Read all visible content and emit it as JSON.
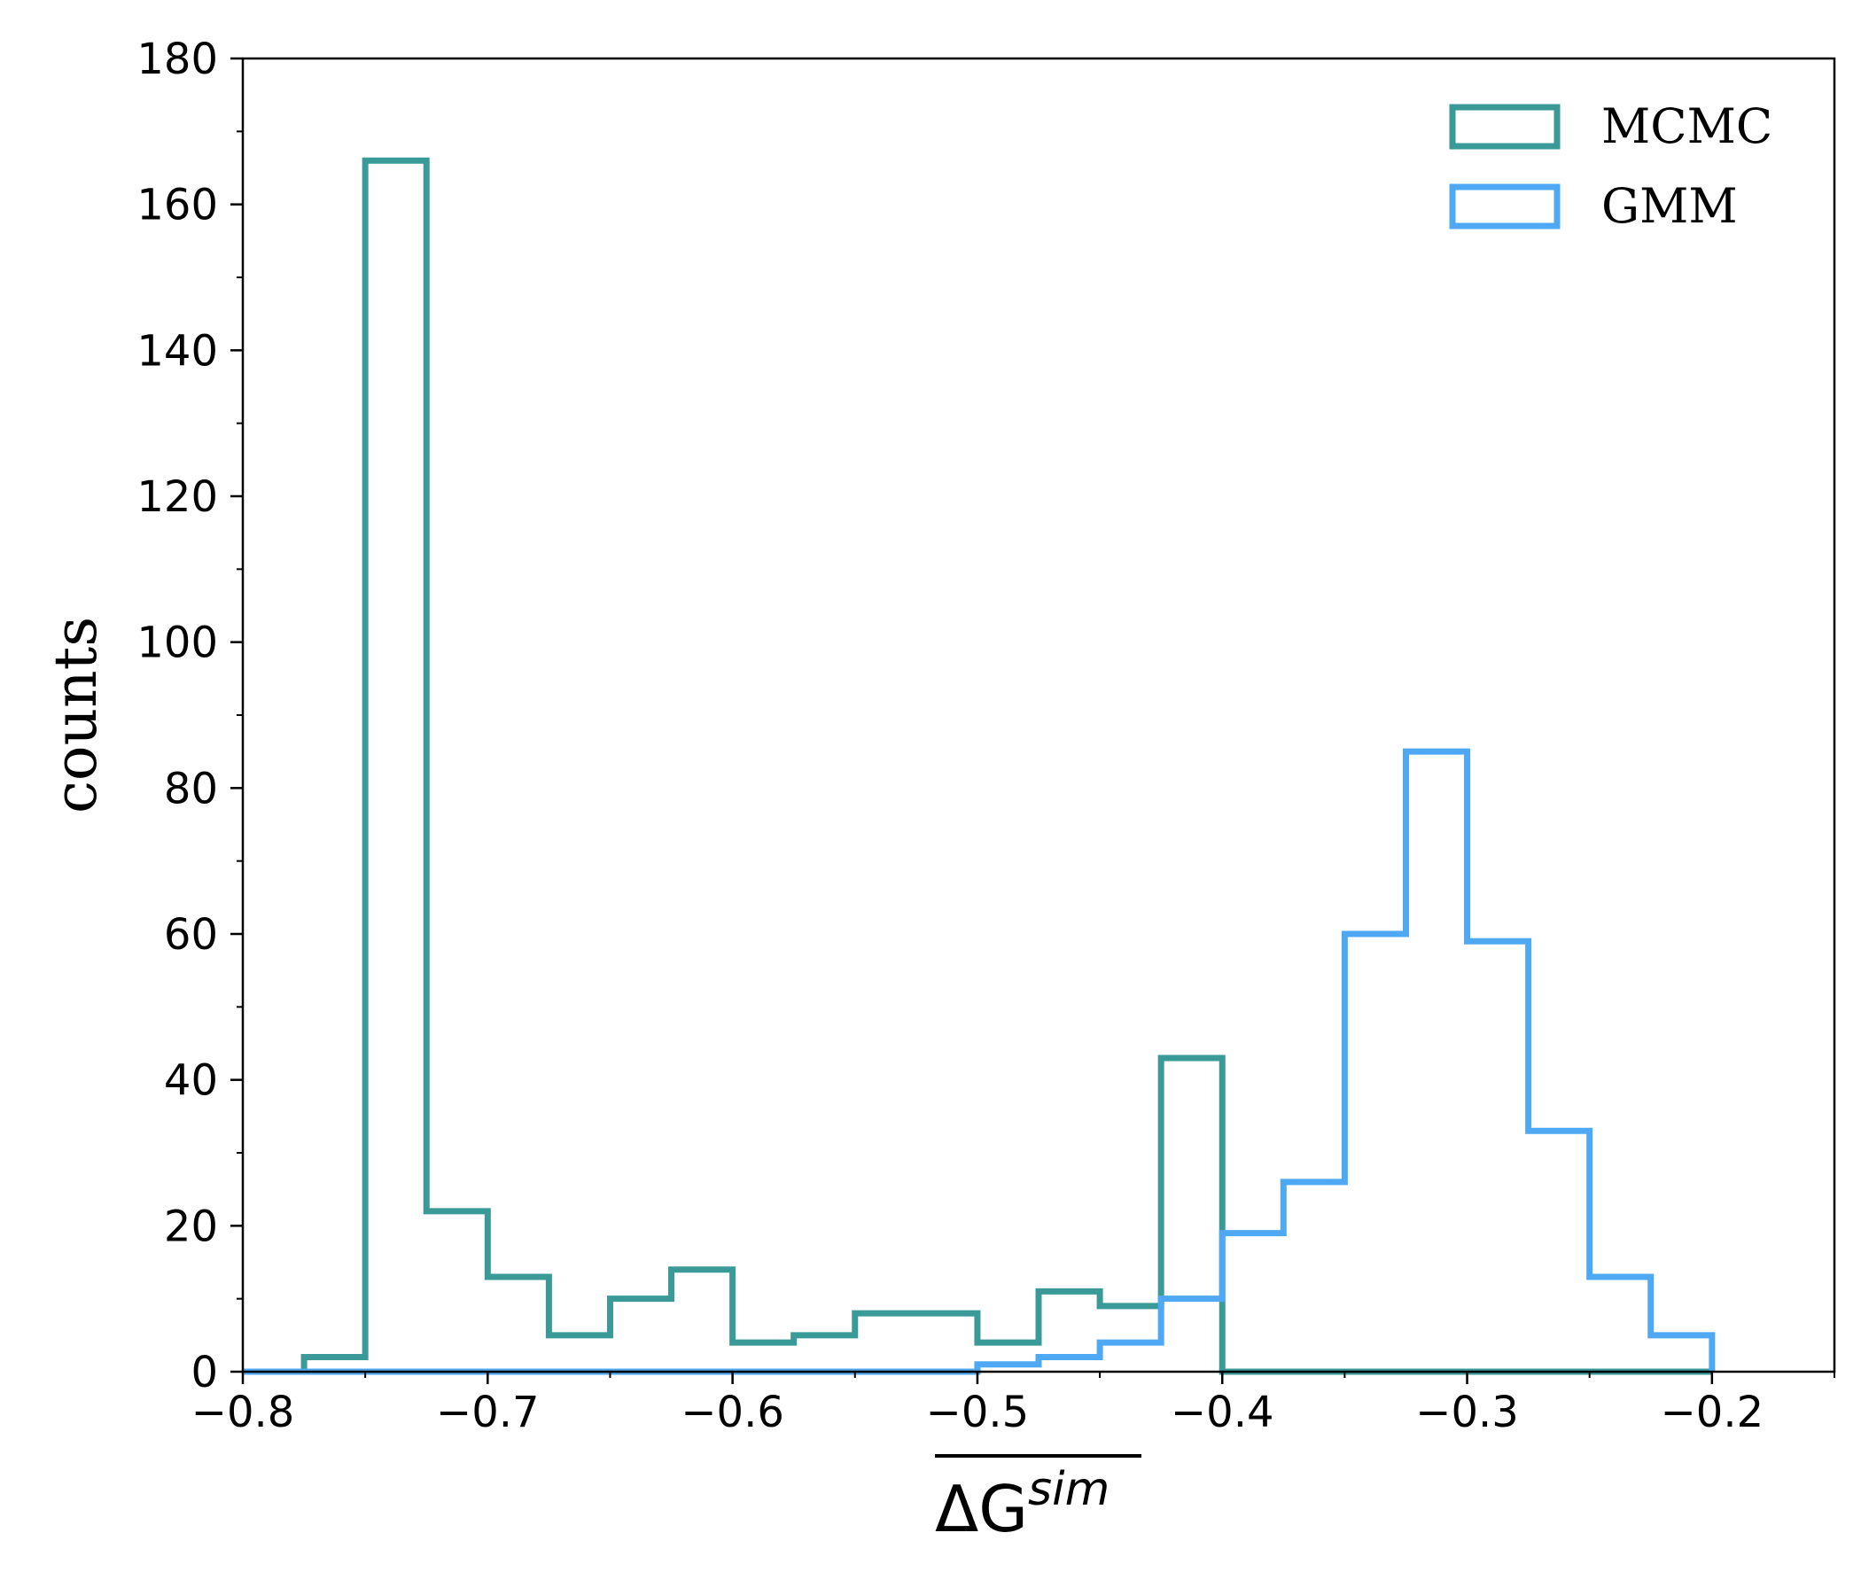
{
  "chart_data": {
    "type": "histogram",
    "xlabel": "ΔG",
    "xlabel_superscript": "sim",
    "xlabel_overline": true,
    "ylabel": "counts",
    "xlim": [
      -0.8,
      -0.15
    ],
    "ylim": [
      0,
      180
    ],
    "xticks": [
      -0.8,
      -0.7,
      -0.6,
      -0.5,
      -0.4,
      -0.3,
      -0.2
    ],
    "xtick_labels": [
      "−0.8",
      "−0.7",
      "−0.6",
      "−0.5",
      "−0.4",
      "−0.3",
      "−0.2"
    ],
    "yticks": [
      0,
      20,
      40,
      60,
      80,
      100,
      120,
      140,
      160,
      180
    ],
    "ytick_labels": [
      "0",
      "20",
      "40",
      "60",
      "80",
      "100",
      "120",
      "140",
      "160",
      "180"
    ],
    "bin_edges": [
      -0.8,
      -0.775,
      -0.75,
      -0.725,
      -0.7,
      -0.675,
      -0.65,
      -0.625,
      -0.6,
      -0.575,
      -0.55,
      -0.525,
      -0.5,
      -0.475,
      -0.45,
      -0.425,
      -0.4,
      -0.375,
      -0.35,
      -0.325,
      -0.3,
      -0.275,
      -0.25,
      -0.225,
      -0.2
    ],
    "legend_position": "top-right",
    "grid": false,
    "series": [
      {
        "name": "MCMC",
        "color": "#3a9a98",
        "counts": [
          0,
          2,
          166,
          22,
          13,
          5,
          10,
          14,
          4,
          5,
          8,
          8,
          4,
          11,
          9,
          43,
          0,
          0,
          0,
          0,
          0,
          0,
          0,
          0
        ]
      },
      {
        "name": "GMM",
        "color": "#4ea8f4",
        "counts": [
          0,
          0,
          0,
          0,
          0,
          0,
          0,
          0,
          0,
          0,
          0,
          0,
          1,
          2,
          4,
          10,
          19,
          26,
          60,
          85,
          59,
          33,
          13,
          5
        ]
      }
    ]
  }
}
